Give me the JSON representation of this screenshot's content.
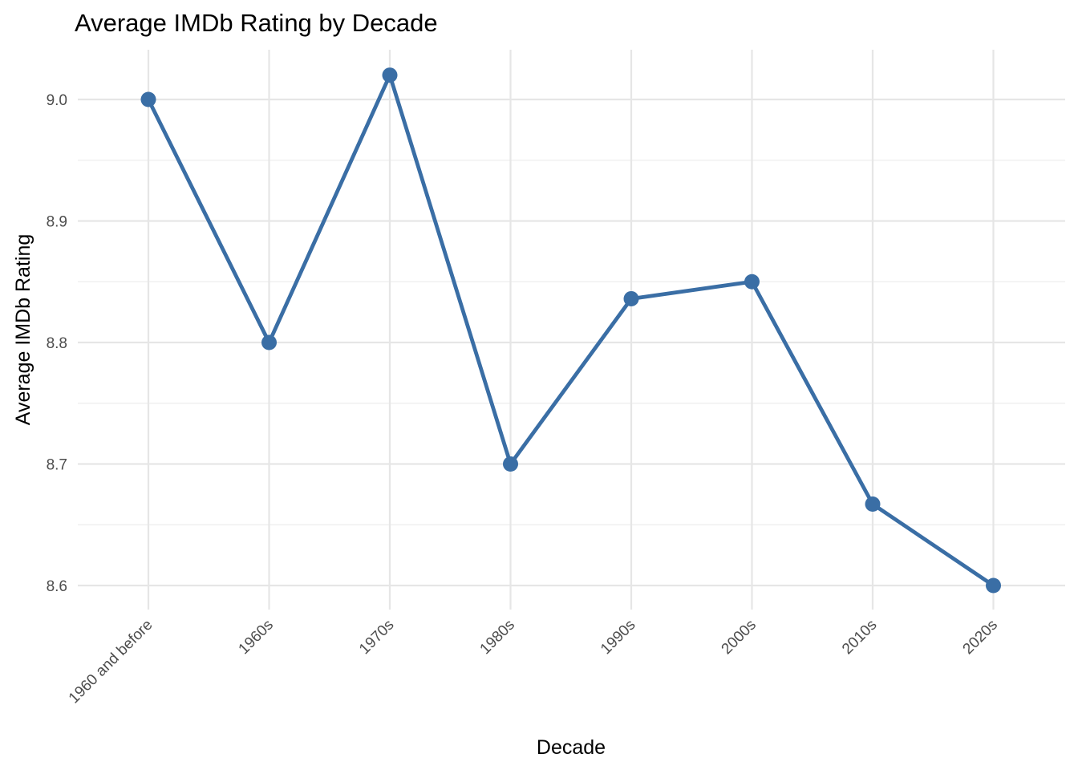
{
  "chart_data": {
    "type": "line",
    "title": "Average IMDb Rating by Decade",
    "xlabel": "Decade",
    "ylabel": "Average IMDb Rating",
    "categories": [
      "1960 and before",
      "1960s",
      "1970s",
      "1980s",
      "1990s",
      "2000s",
      "2010s",
      "2020s"
    ],
    "values": [
      9.0,
      8.8,
      9.02,
      8.7,
      8.836,
      8.85,
      8.667,
      8.6
    ],
    "ylim": [
      8.58,
      9.04
    ],
    "y_ticks": [
      8.6,
      8.7,
      8.8,
      8.9,
      9.0
    ],
    "y_tick_labels": [
      "8.6",
      "8.7",
      "8.8",
      "8.9",
      "9.0"
    ],
    "grid": true,
    "legend": "none",
    "color": "#3a6ea5"
  }
}
